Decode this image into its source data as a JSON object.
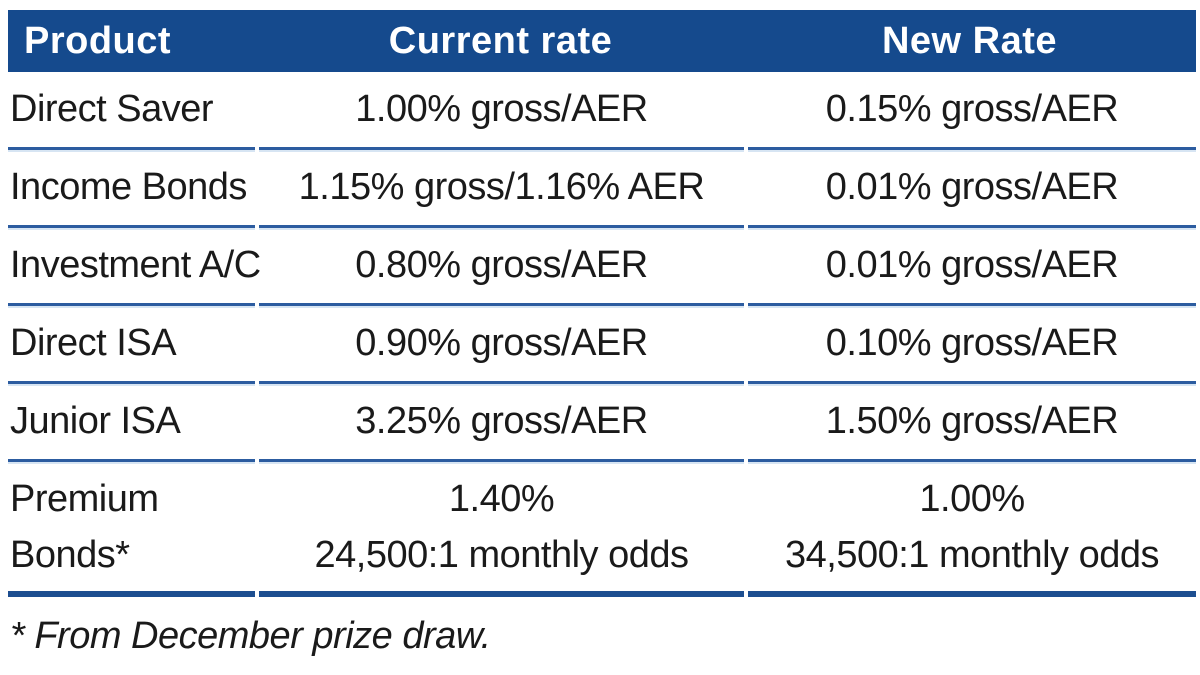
{
  "table": {
    "columns": [
      "Product",
      "Current rate",
      "New Rate"
    ],
    "rows": [
      {
        "product": "Direct Saver",
        "current": "1.00% gross/AER",
        "new": "0.15% gross/AER"
      },
      {
        "product": "Income Bonds",
        "current": "1.15% gross/1.16% AER",
        "new": "0.01% gross/AER"
      },
      {
        "product": "Investment A/C",
        "current": "0.80% gross/AER",
        "new": "0.01% gross/AER"
      },
      {
        "product": "Direct ISA",
        "current": "0.90% gross/AER",
        "new": "0.10% gross/AER"
      },
      {
        "product": "Junior ISA",
        "current": "3.25% gross/AER",
        "new": "1.50% gross/AER"
      },
      {
        "product": "Premium Bonds*",
        "current_rate": "1.40%",
        "current_odds": "24,500:1 monthly odds",
        "new_rate": "1.00%",
        "new_odds": "34,500:1 monthly odds"
      }
    ],
    "footnote": "* From December prize draw."
  },
  "colors": {
    "header_background": "#154a8d",
    "header_text": "#ffffff",
    "row_separator": "#2c5ca0",
    "row_separator_glow": "#d7e5f3",
    "table_bottom_border": "#1d4e90",
    "body_text": "#1a1a1a"
  }
}
